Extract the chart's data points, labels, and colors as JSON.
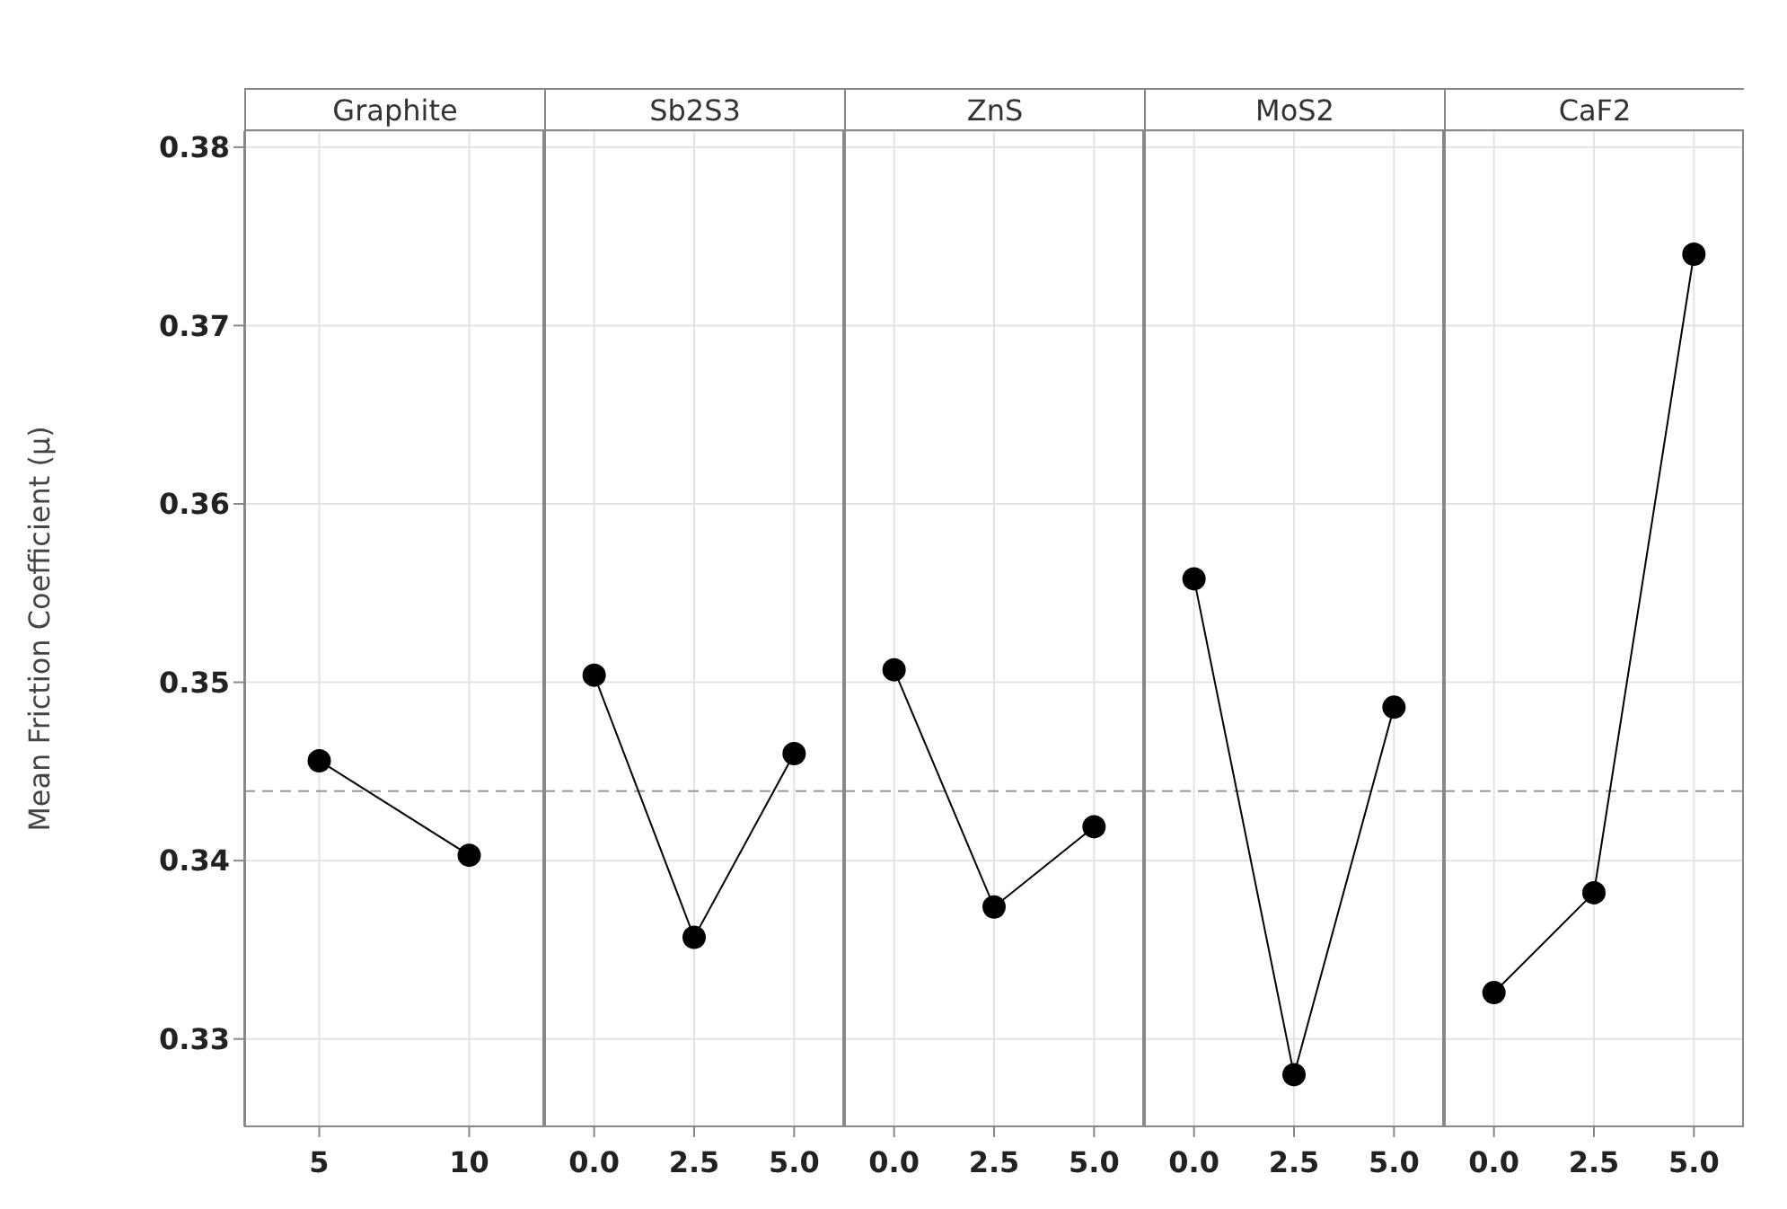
{
  "chart_data": [
    {
      "type": "line",
      "title": "Graphite",
      "ylabel": "Mean  Friction Coefficient (µ)",
      "categories": [
        "5",
        "10"
      ],
      "values": [
        0.3456,
        0.3403
      ],
      "color": "#000000",
      "marker": "circle",
      "ylim": [
        0.3251,
        0.3809
      ],
      "yticks": [
        0.33,
        0.34,
        0.35,
        0.36,
        0.37,
        0.38
      ],
      "grid": true,
      "ref_lines": [
        {
          "axis": "y",
          "value": 0.3439,
          "color": "#999999",
          "line_style": "dashed"
        }
      ]
    },
    {
      "type": "line",
      "title": "Sb2S3",
      "categories": [
        "0.0",
        "2.5",
        "5.0"
      ],
      "values": [
        0.3504,
        0.3357,
        0.346
      ],
      "color": "#000000",
      "marker": "circle",
      "ylim": [
        0.3251,
        0.3809
      ],
      "yticks": [
        0.33,
        0.34,
        0.35,
        0.36,
        0.37,
        0.38
      ],
      "grid": true,
      "tick_labels": "x",
      "ref_lines": [
        {
          "axis": "y",
          "value": 0.3439,
          "color": "#999999",
          "line_style": "dashed"
        }
      ]
    },
    {
      "type": "line",
      "title": "ZnS",
      "categories": [
        "0.0",
        "2.5",
        "5.0"
      ],
      "values": [
        0.3507,
        0.3374,
        0.3419
      ],
      "color": "#000000",
      "marker": "circle",
      "ylim": [
        0.3251,
        0.3809
      ],
      "yticks": [
        0.33,
        0.34,
        0.35,
        0.36,
        0.37,
        0.38
      ],
      "grid": true,
      "tick_labels": "x",
      "ref_lines": [
        {
          "axis": "y",
          "value": 0.3439,
          "color": "#999999",
          "line_style": "dashed"
        }
      ]
    },
    {
      "type": "line",
      "title": "MoS2",
      "categories": [
        "0.0",
        "2.5",
        "5.0"
      ],
      "values": [
        0.3558,
        0.328,
        0.3486
      ],
      "color": "#000000",
      "marker": "circle",
      "ylim": [
        0.3251,
        0.3809
      ],
      "yticks": [
        0.33,
        0.34,
        0.35,
        0.36,
        0.37,
        0.38
      ],
      "grid": true,
      "tick_labels": "x",
      "ref_lines": [
        {
          "axis": "y",
          "value": 0.3439,
          "color": "#999999",
          "line_style": "dashed"
        }
      ]
    },
    {
      "type": "line",
      "title": "CaF2",
      "categories": [
        "0.0",
        "2.5",
        "5.0"
      ],
      "values": [
        0.3326,
        0.3382,
        0.374
      ],
      "color": "#000000",
      "marker": "circle",
      "ylim": [
        0.3251,
        0.3809
      ],
      "yticks": [
        0.33,
        0.34,
        0.35,
        0.36,
        0.37,
        0.38
      ],
      "grid": true,
      "tick_labels": "x",
      "ref_lines": [
        {
          "axis": "y",
          "value": 0.3439,
          "color": "#999999",
          "line_style": "dashed"
        }
      ]
    }
  ]
}
